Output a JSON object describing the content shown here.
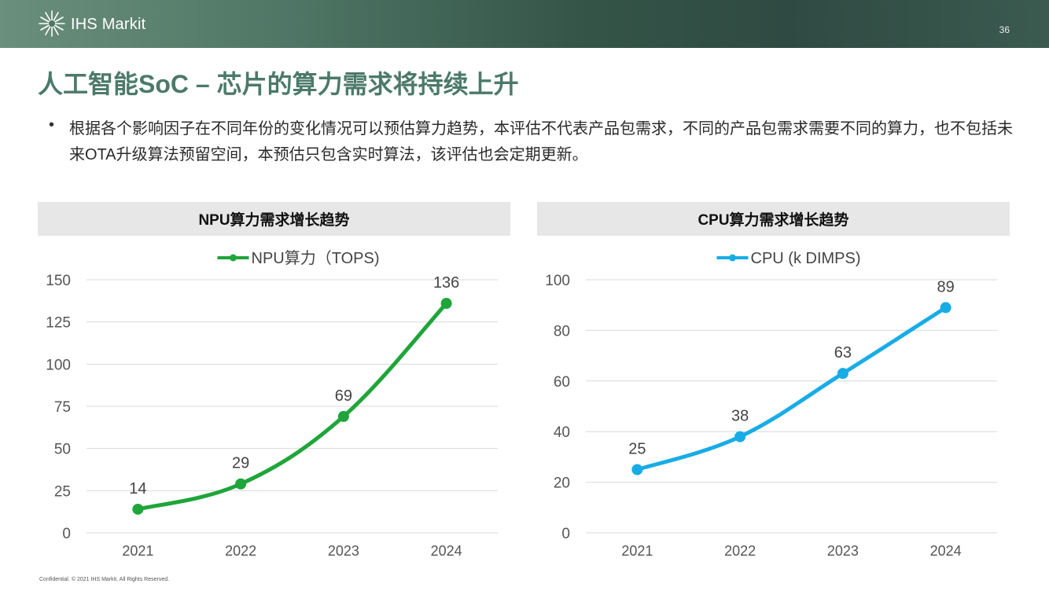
{
  "header": {
    "brand": "IHS Markit",
    "page_number": "36",
    "logo_icon": "starburst-logo-icon"
  },
  "title": "人工智能SoC – 芯片的算力需求将持续上升",
  "bullet": {
    "text": "根据各个影响因子在不同年份的变化情况可以预估算力趋势，本评估不代表产品包需求，不同的产品包需求需要不同的算力，也不包括未来OTA升级算法预留空间，本预估只包含实时算法，该评估也会定期更新。"
  },
  "footer": {
    "text": "Confidential. © 2021 IHS Markit. All Rights Reserved."
  },
  "chart_data": [
    {
      "type": "line",
      "title": "NPU算力需求增长趋势",
      "categories": [
        "2021",
        "2022",
        "2023",
        "2024"
      ],
      "series": [
        {
          "name": "NPU算力（TOPS)",
          "values": [
            14,
            29,
            69,
            136
          ],
          "color": "#1fa53a"
        }
      ],
      "ylim": [
        0,
        150
      ],
      "yticks": [
        0,
        25,
        50,
        75,
        100,
        125,
        150
      ],
      "xlabel": "",
      "ylabel": "",
      "grid": true,
      "legend": "top-center"
    },
    {
      "type": "line",
      "title": "CPU算力需求增长趋势",
      "categories": [
        "2021",
        "2022",
        "2023",
        "2024"
      ],
      "series": [
        {
          "name": "CPU (k DIMPS)",
          "values": [
            25,
            38,
            63,
            89
          ],
          "color": "#18ace6"
        }
      ],
      "ylim": [
        0,
        100
      ],
      "yticks": [
        0,
        20,
        40,
        60,
        80,
        100
      ],
      "xlabel": "",
      "ylabel": "",
      "grid": true,
      "legend": "top-center"
    }
  ]
}
